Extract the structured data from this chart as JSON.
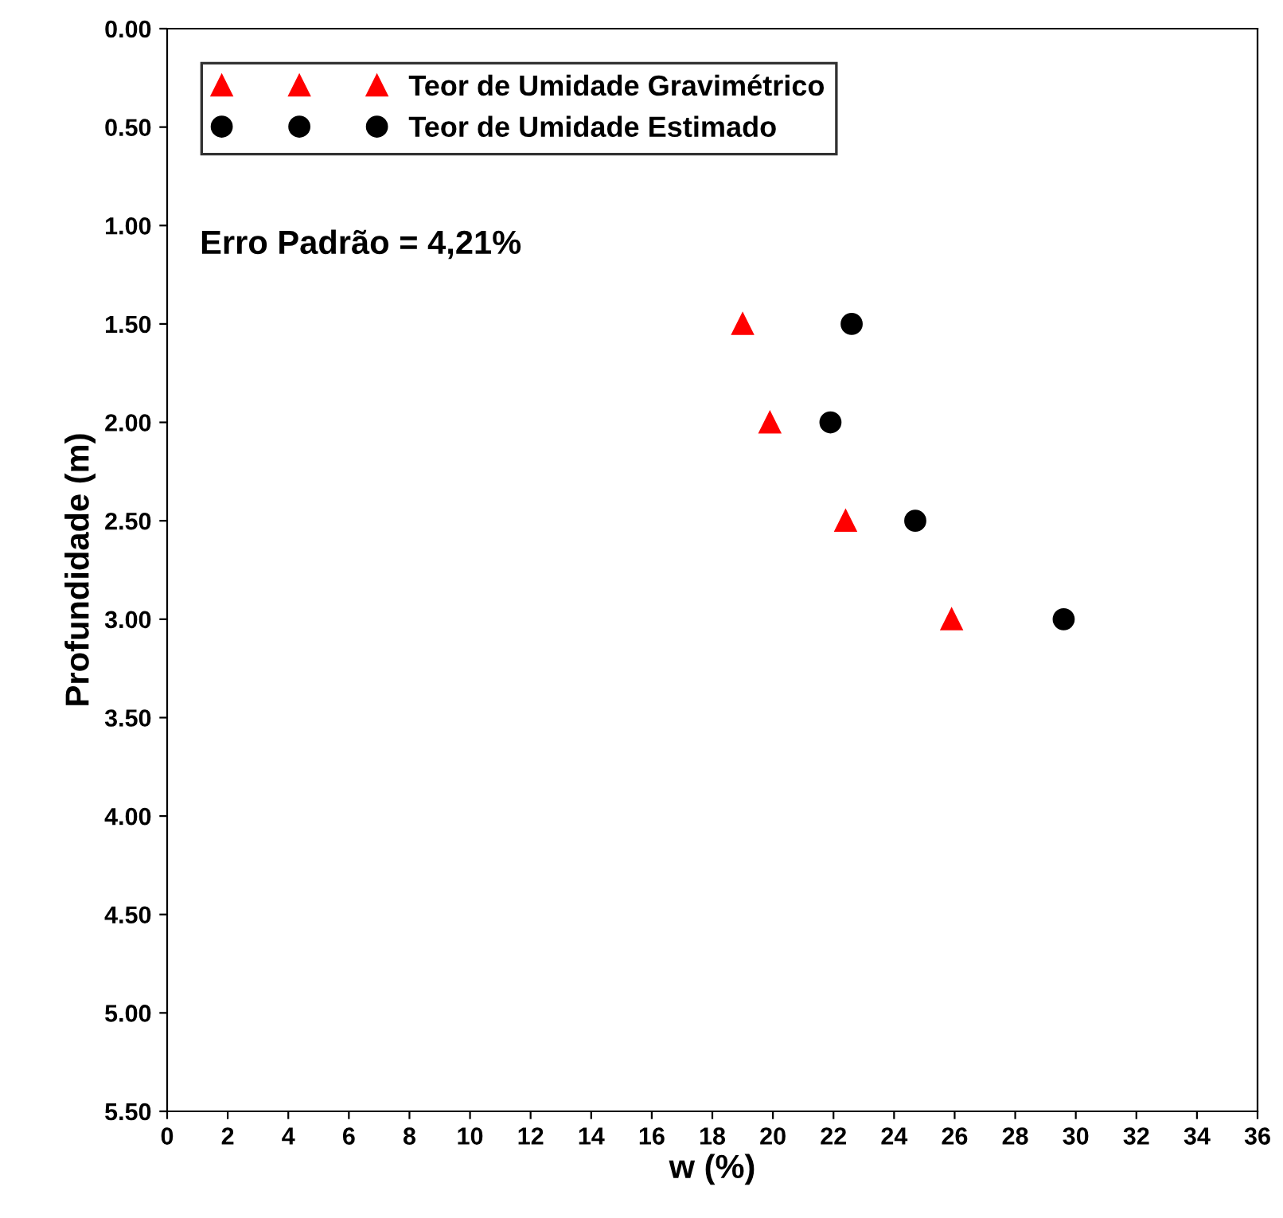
{
  "chart_data": {
    "type": "scatter",
    "xlabel": "w (%)",
    "ylabel": "Profundidade (m)",
    "series": [
      {
        "name": "Teor de Umidade Gravimétrico",
        "color": "#ff0000",
        "marker": "triangle",
        "x": [
          19.0,
          19.9,
          22.4,
          25.9
        ],
        "values": [
          1.5,
          2.0,
          2.5,
          3.0
        ]
      },
      {
        "name": "Teor de Umidade Estimado",
        "color": "#000000",
        "marker": "circle",
        "x": [
          22.6,
          21.9,
          24.7,
          29.6
        ],
        "values": [
          1.5,
          2.0,
          2.5,
          3.0
        ]
      }
    ],
    "xlim": [
      0,
      36
    ],
    "xticks": [
      0,
      2,
      4,
      6,
      8,
      10,
      12,
      14,
      16,
      18,
      20,
      22,
      24,
      26,
      28,
      30,
      32,
      34,
      36
    ],
    "ylim": [
      5.5,
      0
    ],
    "yticks": [
      {
        "value": 0,
        "label": "0.00"
      },
      {
        "value": 0.5,
        "label": "0.50"
      },
      {
        "value": 1,
        "label": "1.00"
      },
      {
        "value": 1.5,
        "label": "1.50"
      },
      {
        "value": 2,
        "label": "2.00"
      },
      {
        "value": 2.5,
        "label": "2.50"
      },
      {
        "value": 3,
        "label": "3.00"
      },
      {
        "value": 3.5,
        "label": "3.50"
      },
      {
        "value": 4,
        "label": "4.00"
      },
      {
        "value": 4.5,
        "label": "4.50"
      },
      {
        "value": 5,
        "label": "5.00"
      },
      {
        "value": 5.5,
        "label": "5.50"
      }
    ],
    "annotations": [
      "Erro Padrão = 4,21%"
    ],
    "legend": "top left",
    "grid": false
  }
}
